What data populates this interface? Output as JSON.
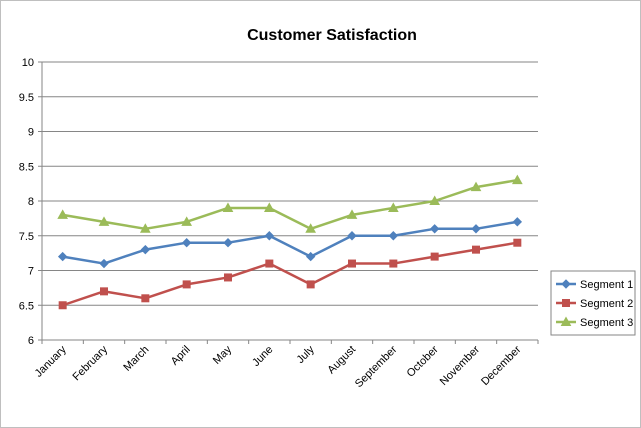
{
  "chart_data": {
    "type": "line",
    "title": "Customer Satisfaction",
    "xlabel": "",
    "ylabel": "",
    "categories": [
      "January",
      "February",
      "March",
      "April",
      "May",
      "June",
      "July",
      "August",
      "September",
      "October",
      "November",
      "December"
    ],
    "ylim": [
      6,
      10
    ],
    "yticks": [
      6,
      6.5,
      7,
      7.5,
      8,
      8.5,
      9,
      9.5,
      10
    ],
    "ytick_labels": [
      "6",
      "6.5",
      "7",
      "7.5",
      "8",
      "8.5",
      "9",
      "9.5",
      "10"
    ],
    "grid": true,
    "legend_position": "right",
    "series": [
      {
        "name": "Segment 1",
        "color": "#4f81bd",
        "marker": "diamond",
        "values": [
          7.2,
          7.1,
          7.3,
          7.4,
          7.4,
          7.5,
          7.2,
          7.5,
          7.5,
          7.6,
          7.6,
          7.7
        ]
      },
      {
        "name": "Segment 2",
        "color": "#c0504d",
        "marker": "square",
        "values": [
          6.5,
          6.7,
          6.6,
          6.8,
          6.9,
          7.1,
          6.8,
          7.1,
          7.1,
          7.2,
          7.3,
          7.4
        ]
      },
      {
        "name": "Segment 3",
        "color": "#9bbb59",
        "marker": "triangle",
        "values": [
          7.8,
          7.7,
          7.6,
          7.7,
          7.9,
          7.9,
          7.6,
          7.8,
          7.9,
          8.0,
          8.2,
          8.3
        ]
      }
    ]
  }
}
